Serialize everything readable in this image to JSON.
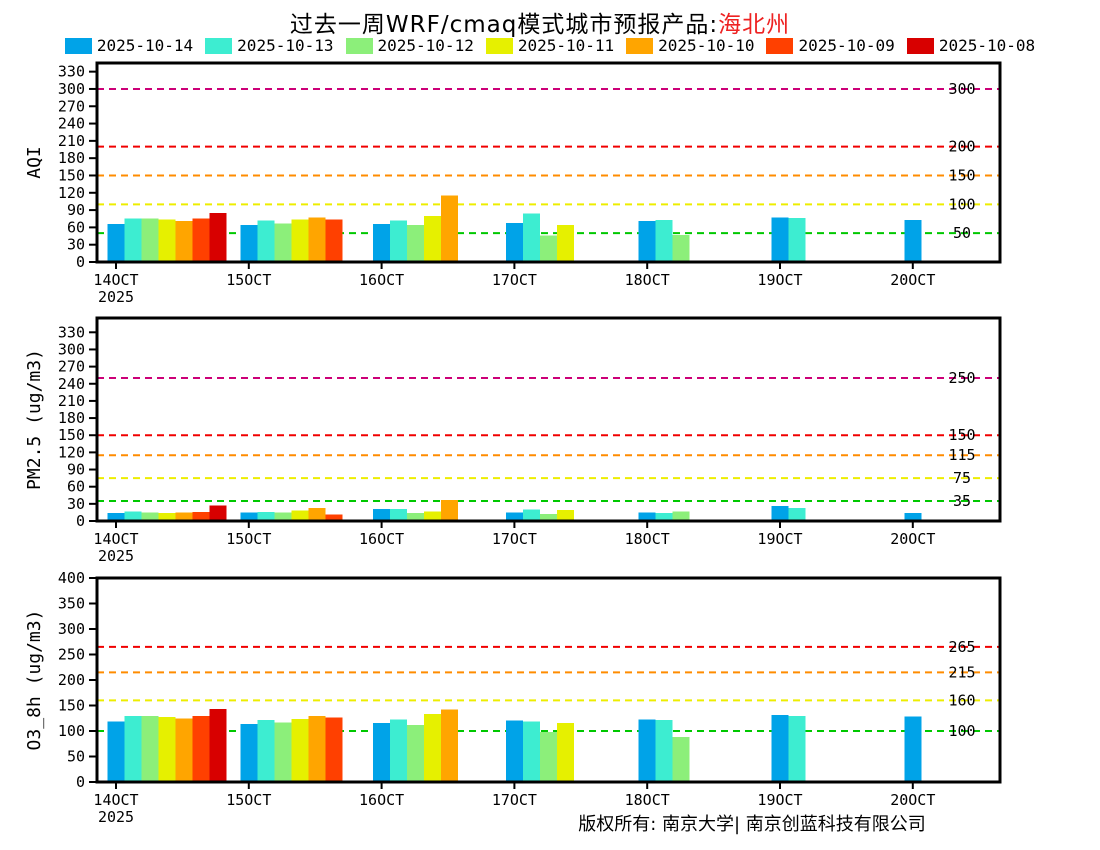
{
  "title": {
    "prefix": "过去一周WRF/cmaq模式城市预报产品:",
    "city": "海北州",
    "city_color": "#ee2222"
  },
  "legend": {
    "items": [
      {
        "label": "2025-10-14",
        "color": "#00a3e8"
      },
      {
        "label": "2025-10-13",
        "color": "#3dedd1"
      },
      {
        "label": "2025-10-12",
        "color": "#8cef7a"
      },
      {
        "label": "2025-10-11",
        "color": "#e6f000"
      },
      {
        "label": "2025-10-10",
        "color": "#ffa500"
      },
      {
        "label": "2025-10-09",
        "color": "#ff4000"
      },
      {
        "label": "2025-10-08",
        "color": "#d80000"
      }
    ]
  },
  "footer": {
    "text": "版权所有: 南京大学| 南京创蓝科技有限公司"
  },
  "chart_data": [
    {
      "type": "bar",
      "title": "AQI past-week forecast",
      "ylabel": "AQI",
      "categories": [
        "14OCT",
        "15OCT",
        "16OCT",
        "17OCT",
        "18OCT",
        "19OCT",
        "20OCT"
      ],
      "x_sublabel": "2025",
      "ylim": [
        0,
        345
      ],
      "yticks": [
        0,
        30,
        60,
        90,
        120,
        150,
        180,
        210,
        240,
        270,
        300,
        330
      ],
      "grid": "threshold-lines-only",
      "legend_position": "top-shared",
      "thresholds": [
        {
          "value": 50,
          "label": "50",
          "color": "#00c800"
        },
        {
          "value": 100,
          "label": "100",
          "color": "#eded00"
        },
        {
          "value": 150,
          "label": "150",
          "color": "#ff8c00"
        },
        {
          "value": 200,
          "label": "200",
          "color": "#f00000"
        },
        {
          "value": 300,
          "label": "300",
          "color": "#cc0077"
        }
      ],
      "series": [
        {
          "name": "2025-10-14",
          "values": [
            66,
            64,
            66,
            68,
            71,
            77,
            73
          ]
        },
        {
          "name": "2025-10-13",
          "values": [
            75,
            72,
            72,
            84,
            73,
            76,
            null
          ]
        },
        {
          "name": "2025-10-12",
          "values": [
            75,
            67,
            64,
            46,
            47,
            null,
            null
          ]
        },
        {
          "name": "2025-10-11",
          "values": [
            74,
            74,
            80,
            64,
            null,
            null,
            null
          ]
        },
        {
          "name": "2025-10-10",
          "values": [
            71,
            77,
            115,
            null,
            null,
            null,
            null
          ]
        },
        {
          "name": "2025-10-09",
          "values": [
            75,
            74,
            null,
            null,
            null,
            null,
            null
          ]
        },
        {
          "name": "2025-10-08",
          "values": [
            85,
            null,
            null,
            null,
            null,
            null,
            null
          ]
        }
      ]
    },
    {
      "type": "bar",
      "title": "PM2.5 past-week forecast",
      "ylabel": "PM2.5 (ug/m3)",
      "categories": [
        "14OCT",
        "15OCT",
        "16OCT",
        "17OCT",
        "18OCT",
        "19OCT",
        "20OCT"
      ],
      "x_sublabel": "2025",
      "ylim": [
        0,
        355
      ],
      "yticks": [
        0,
        30,
        60,
        90,
        120,
        150,
        180,
        210,
        240,
        270,
        300,
        330
      ],
      "grid": "threshold-lines-only",
      "legend_position": "top-shared",
      "thresholds": [
        {
          "value": 35,
          "label": "35",
          "color": "#00c800"
        },
        {
          "value": 75,
          "label": "75",
          "color": "#eded00"
        },
        {
          "value": 115,
          "label": "115",
          "color": "#ff8c00"
        },
        {
          "value": 150,
          "label": "150",
          "color": "#f00000"
        },
        {
          "value": 250,
          "label": "250",
          "color": "#cc0077"
        }
      ],
      "series": [
        {
          "name": "2025-10-14",
          "values": [
            14,
            15,
            21,
            15,
            15,
            26,
            14
          ]
        },
        {
          "name": "2025-10-13",
          "values": [
            17,
            16,
            21,
            20,
            14,
            23,
            null
          ]
        },
        {
          "name": "2025-10-12",
          "values": [
            15,
            15,
            14,
            12,
            17,
            null,
            null
          ]
        },
        {
          "name": "2025-10-11",
          "values": [
            14,
            18,
            17,
            19,
            null,
            null,
            null
          ]
        },
        {
          "name": "2025-10-10",
          "values": [
            15,
            23,
            37,
            null,
            null,
            null,
            null
          ]
        },
        {
          "name": "2025-10-09",
          "values": [
            16,
            11,
            null,
            null,
            null,
            null,
            null
          ]
        },
        {
          "name": "2025-10-08",
          "values": [
            27,
            null,
            null,
            null,
            null,
            null,
            null
          ]
        }
      ]
    },
    {
      "type": "bar",
      "title": "O3_8h past-week forecast",
      "ylabel": "O3_8h (ug/m3)",
      "categories": [
        "14OCT",
        "15OCT",
        "16OCT",
        "17OCT",
        "18OCT",
        "19OCT",
        "20OCT"
      ],
      "x_sublabel": "2025",
      "ylim": [
        0,
        400
      ],
      "yticks": [
        0,
        50,
        100,
        150,
        200,
        250,
        300,
        350,
        400
      ],
      "grid": "threshold-lines-only",
      "legend_position": "top-shared",
      "thresholds": [
        {
          "value": 100,
          "label": "100",
          "color": "#00c800"
        },
        {
          "value": 160,
          "label": "160",
          "color": "#eded00"
        },
        {
          "value": 215,
          "label": "215",
          "color": "#ff8c00"
        },
        {
          "value": 265,
          "label": "265",
          "color": "#f00000"
        }
      ],
      "series": [
        {
          "name": "2025-10-14",
          "values": [
            119,
            114,
            116,
            121,
            123,
            131,
            128
          ]
        },
        {
          "name": "2025-10-13",
          "values": [
            129,
            122,
            123,
            119,
            122,
            129,
            null
          ]
        },
        {
          "name": "2025-10-12",
          "values": [
            129,
            117,
            112,
            98,
            88,
            null,
            null
          ]
        },
        {
          "name": "2025-10-11",
          "values": [
            127,
            124,
            133,
            116,
            null,
            null,
            null
          ]
        },
        {
          "name": "2025-10-10",
          "values": [
            125,
            129,
            142,
            null,
            null,
            null,
            null
          ]
        },
        {
          "name": "2025-10-09",
          "values": [
            129,
            126,
            null,
            null,
            null,
            null,
            null
          ]
        },
        {
          "name": "2025-10-08",
          "values": [
            143,
            null,
            null,
            null,
            null,
            null,
            null
          ]
        }
      ]
    }
  ]
}
